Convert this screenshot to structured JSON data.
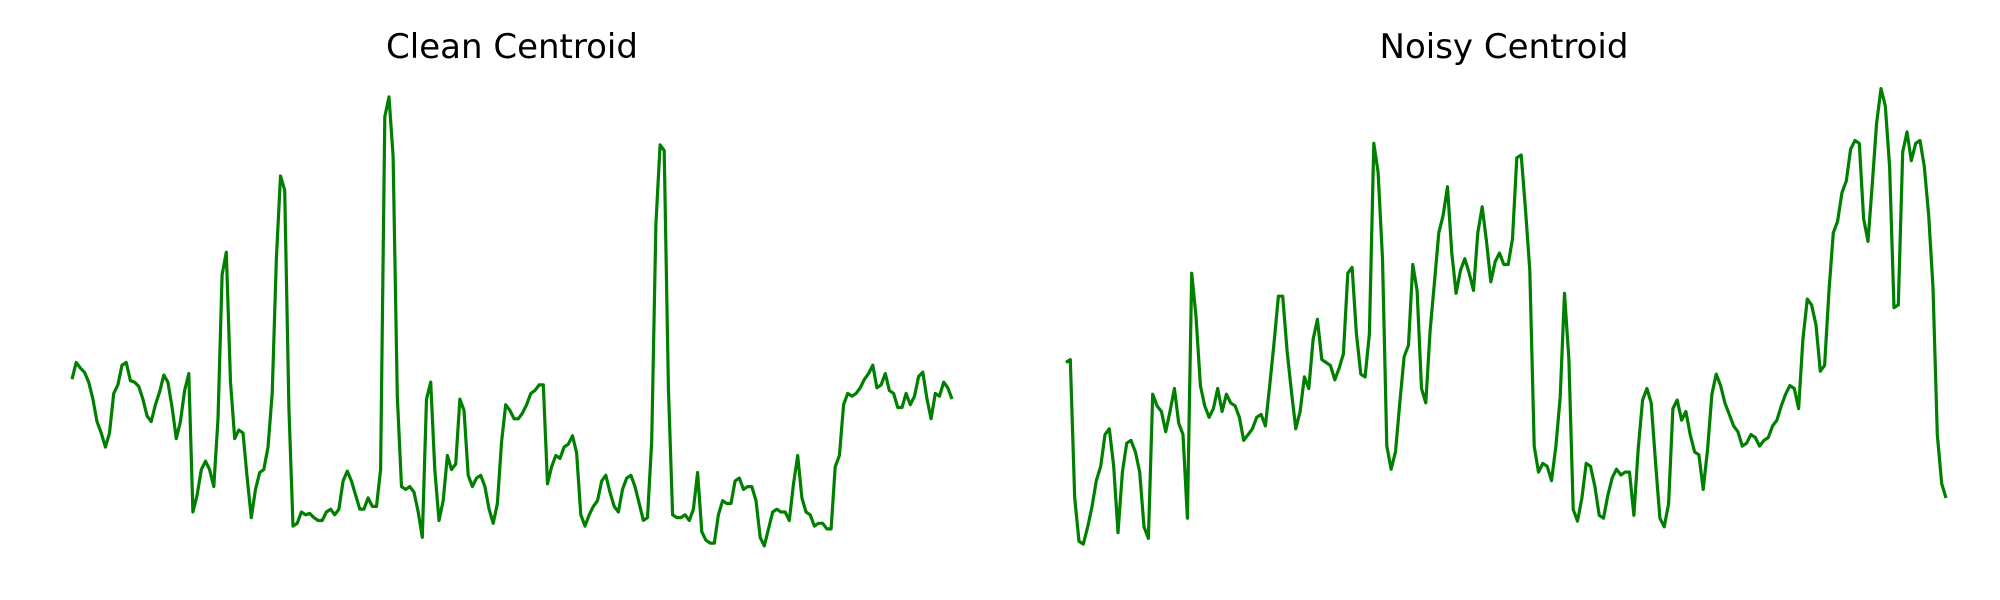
{
  "colors": {
    "line": "#008000",
    "background": "#ffffff"
  },
  "chart_data": [
    {
      "type": "line",
      "title": "Clean Centroid",
      "xlabel": "",
      "ylabel": "",
      "axes_visible": false,
      "grid": false,
      "legend": "none",
      "ylim": [
        -0.28,
        3.12
      ],
      "series": [
        {
          "values": [
            1.0,
            1.12,
            1.08,
            1.05,
            0.98,
            0.86,
            0.7,
            0.62,
            0.52,
            0.62,
            0.9,
            0.96,
            1.1,
            1.12,
            0.99,
            0.98,
            0.95,
            0.86,
            0.74,
            0.7,
            0.82,
            0.91,
            1.03,
            0.98,
            0.8,
            0.58,
            0.7,
            0.92,
            1.04,
            0.06,
            0.18,
            0.36,
            0.42,
            0.36,
            0.24,
            0.72,
            1.74,
            1.9,
            0.98,
            0.58,
            0.64,
            0.62,
            0.3,
            0.02,
            0.22,
            0.34,
            0.36,
            0.52,
            0.9,
            1.86,
            2.44,
            2.34,
            0.8,
            -0.04,
            -0.02,
            0.06,
            0.04,
            0.05,
            0.02,
            0.0,
            0.0,
            0.06,
            0.08,
            0.04,
            0.08,
            0.28,
            0.35,
            0.28,
            0.18,
            0.08,
            0.08,
            0.16,
            0.1,
            0.1,
            0.36,
            2.86,
            3.0,
            2.58,
            0.88,
            0.24,
            0.22,
            0.24,
            0.2,
            0.06,
            -0.12,
            0.86,
            0.98,
            0.36,
            0.0,
            0.14,
            0.46,
            0.36,
            0.4,
            0.86,
            0.78,
            0.32,
            0.24,
            0.3,
            0.32,
            0.24,
            0.08,
            -0.02,
            0.12,
            0.56,
            0.82,
            0.78,
            0.72,
            0.72,
            0.76,
            0.82,
            0.9,
            0.92,
            0.96,
            0.96,
            0.26,
            0.38,
            0.46,
            0.44,
            0.52,
            0.54,
            0.6,
            0.48,
            0.04,
            -0.04,
            0.04,
            0.1,
            0.14,
            0.28,
            0.32,
            0.2,
            0.1,
            0.06,
            0.22,
            0.3,
            0.32,
            0.24,
            0.12,
            0.0,
            0.02,
            0.56,
            2.1,
            2.66,
            2.62,
            0.94,
            0.04,
            0.02,
            0.02,
            0.04,
            0.0,
            0.08,
            0.34,
            -0.08,
            -0.14,
            -0.16,
            -0.16,
            0.04,
            0.14,
            0.12,
            0.12,
            0.28,
            0.3,
            0.22,
            0.24,
            0.24,
            0.14,
            -0.12,
            -0.18,
            -0.06,
            0.06,
            0.08,
            0.06,
            0.06,
            0.0,
            0.26,
            0.46,
            0.16,
            0.06,
            0.04,
            -0.04,
            -0.02,
            -0.02,
            -0.06,
            -0.06,
            0.38,
            0.46,
            0.82,
            0.9,
            0.88,
            0.9,
            0.94,
            1.0,
            1.04,
            1.1,
            0.94,
            0.96,
            1.04,
            0.92,
            0.9,
            0.8,
            0.8,
            0.9,
            0.82,
            0.88,
            1.02,
            1.05,
            0.86,
            0.72,
            0.9,
            0.88,
            0.98,
            0.94,
            0.86
          ]
        }
      ]
    },
    {
      "type": "line",
      "title": "Noisy Centroid",
      "xlabel": "",
      "ylabel": "",
      "axes_visible": false,
      "grid": false,
      "legend": "none",
      "ylim": [
        -0.27,
        3.06
      ],
      "series": [
        {
          "values": [
            1.1,
            1.12,
            0.16,
            -0.14,
            -0.16,
            -0.04,
            0.1,
            0.28,
            0.38,
            0.6,
            0.64,
            0.38,
            -0.08,
            0.34,
            0.54,
            0.56,
            0.48,
            0.34,
            -0.04,
            -0.12,
            0.88,
            0.8,
            0.76,
            0.62,
            0.76,
            0.92,
            0.68,
            0.6,
            0.02,
            1.72,
            1.42,
            0.94,
            0.8,
            0.72,
            0.78,
            0.92,
            0.76,
            0.88,
            0.82,
            0.8,
            0.72,
            0.56,
            0.6,
            0.64,
            0.72,
            0.74,
            0.66,
            0.94,
            1.24,
            1.56,
            1.56,
            1.18,
            0.9,
            0.64,
            0.76,
            1.0,
            0.92,
            1.26,
            1.4,
            1.12,
            1.1,
            1.08,
            0.98,
            1.06,
            1.16,
            1.72,
            1.76,
            1.3,
            1.02,
            1.0,
            1.3,
            2.62,
            2.42,
            1.82,
            0.52,
            0.36,
            0.48,
            0.82,
            1.14,
            1.22,
            1.78,
            1.6,
            0.92,
            0.82,
            1.32,
            1.66,
            2.0,
            2.12,
            2.32,
            1.86,
            1.58,
            1.74,
            1.82,
            1.72,
            1.6,
            2.0,
            2.18,
            1.94,
            1.66,
            1.8,
            1.86,
            1.78,
            1.78,
            1.96,
            2.52,
            2.54,
            2.16,
            1.74,
            0.52,
            0.34,
            0.4,
            0.38,
            0.28,
            0.52,
            0.86,
            1.58,
            1.12,
            0.08,
            0.0,
            0.16,
            0.4,
            0.38,
            0.24,
            0.04,
            0.02,
            0.18,
            0.3,
            0.36,
            0.32,
            0.34,
            0.34,
            0.04,
            0.5,
            0.84,
            0.92,
            0.82,
            0.4,
            0.02,
            -0.04,
            0.12,
            0.78,
            0.84,
            0.7,
            0.76,
            0.6,
            0.48,
            0.46,
            0.22,
            0.5,
            0.88,
            1.02,
            0.94,
            0.82,
            0.74,
            0.66,
            0.62,
            0.52,
            0.54,
            0.6,
            0.58,
            0.52,
            0.56,
            0.58,
            0.66,
            0.7,
            0.8,
            0.88,
            0.94,
            0.92,
            0.78,
            1.26,
            1.54,
            1.5,
            1.36,
            1.04,
            1.08,
            1.6,
            2.0,
            2.08,
            2.28,
            2.36,
            2.58,
            2.64,
            2.62,
            2.1,
            1.94,
            2.34,
            2.76,
            3.0,
            2.88,
            2.46,
            1.48,
            1.5,
            2.56,
            2.7,
            2.5,
            2.62,
            2.64,
            2.46,
            2.12,
            1.62,
            0.6,
            0.26,
            0.16
          ]
        }
      ]
    }
  ]
}
